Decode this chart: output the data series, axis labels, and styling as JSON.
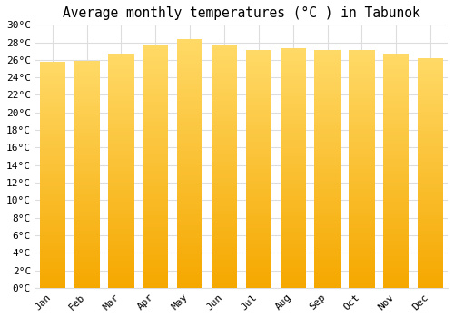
{
  "title": "Average monthly temperatures (°C ) in Tabunok",
  "months": [
    "Jan",
    "Feb",
    "Mar",
    "Apr",
    "May",
    "Jun",
    "Jul",
    "Aug",
    "Sep",
    "Oct",
    "Nov",
    "Dec"
  ],
  "values": [
    25.8,
    25.9,
    26.7,
    27.7,
    28.4,
    27.8,
    27.1,
    27.3,
    27.1,
    27.1,
    26.7,
    26.2
  ],
  "bar_color_bottom": "#F5A800",
  "bar_color_top": "#FFD966",
  "bar_edge_color": "#DDDDDD",
  "background_color": "#FFFFFF",
  "grid_color": "#DDDDDD",
  "ylim": [
    0,
    30
  ],
  "yticks": [
    0,
    2,
    4,
    6,
    8,
    10,
    12,
    14,
    16,
    18,
    20,
    22,
    24,
    26,
    28,
    30
  ],
  "title_fontsize": 10.5,
  "tick_fontsize": 8,
  "font_family": "monospace"
}
